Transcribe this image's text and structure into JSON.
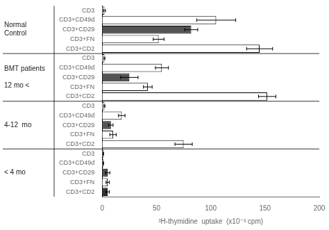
{
  "chart_data": {
    "type": "bar",
    "orientation": "horizontal",
    "xlabel": "³H-thymidine  uptake  (x10⁻³ cpm)",
    "xlim": [
      0,
      200
    ],
    "xticks": [
      0,
      50,
      100,
      150,
      200
    ],
    "grid": false,
    "groups": [
      {
        "label": "Normal\nControl",
        "categories": [
          "CD3",
          "CD3+CD49d",
          "CD3+CD29",
          "CD3+FN",
          "CD3+CD2"
        ],
        "values": [
          2,
          105,
          82,
          52,
          145
        ],
        "errors": [
          1,
          18,
          6,
          5,
          12
        ],
        "colors": [
          "white",
          "white",
          "#555555",
          "white",
          "white"
        ]
      },
      {
        "label": "BMT patients\n\n12 mo <",
        "categories": [
          "CD3",
          "CD3+CD49d",
          "CD3+CD29",
          "CD3+FN",
          "CD3+CD2"
        ],
        "values": [
          2,
          55,
          25,
          42,
          152
        ],
        "errors": [
          0.5,
          6,
          8,
          4,
          8
        ],
        "colors": [
          "white",
          "white",
          "#555555",
          "white",
          "white"
        ]
      },
      {
        "label": "4-12  mo",
        "categories": [
          "CD3",
          "CD3+CD49d",
          "CD3+CD29",
          "CD3+FN",
          "CD3+CD2"
        ],
        "values": [
          2,
          18,
          8,
          10,
          75
        ],
        "errors": [
          0.5,
          3,
          2,
          3,
          8
        ],
        "colors": [
          "white",
          "white",
          "#555555",
          "white",
          "white"
        ]
      },
      {
        "label": "< 4 mo",
        "categories": [
          "CD3",
          "CD3+CD49d",
          "CD3+CD29",
          "CD3+FN",
          "CD3+CD2"
        ],
        "values": [
          1,
          1,
          5,
          5,
          5
        ],
        "errors": [
          0.3,
          0.3,
          2,
          1.5,
          1.5
        ],
        "colors": [
          "white",
          "white",
          "#555555",
          "white",
          "#333333"
        ]
      }
    ]
  }
}
